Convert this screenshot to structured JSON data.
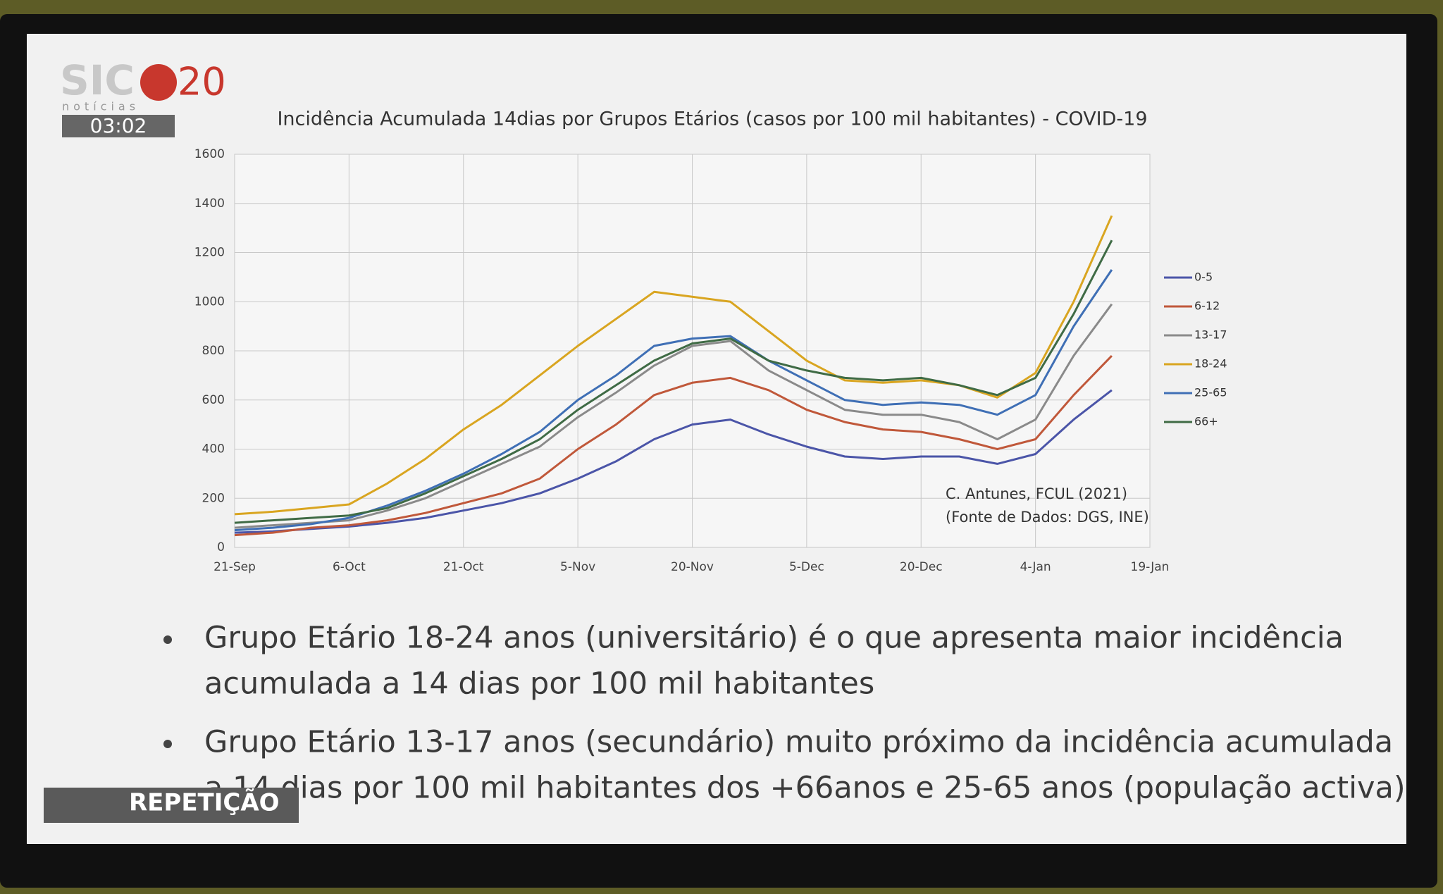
{
  "channel": {
    "logo": "SIC",
    "logo_number": "20",
    "logo_sub": "notícias",
    "clock": "03:02",
    "banner": "REPETIÇÃO"
  },
  "chart_data": {
    "type": "line",
    "title": "Incidência Acumulada 14dias por Grupos Etários (casos por 100 mil habitantes) - COVID-19",
    "categories": [
      "21-Sep",
      null,
      null,
      "6-Oct",
      null,
      null,
      "21-Oct",
      null,
      null,
      "5-Nov",
      null,
      null,
      "20-Nov",
      null,
      null,
      "5-Dec",
      null,
      null,
      "20-Dec",
      null,
      null,
      "4-Jan",
      null,
      null,
      "19-Jan"
    ],
    "series": [
      {
        "name": "0-5",
        "color": "#4b55a8",
        "values": [
          60,
          65,
          75,
          85,
          100,
          120,
          150,
          180,
          220,
          280,
          350,
          440,
          500,
          520,
          460,
          410,
          370,
          360,
          370,
          370,
          340,
          380,
          520,
          640,
          null
        ]
      },
      {
        "name": "6-12",
        "color": "#c0583a",
        "values": [
          50,
          60,
          80,
          90,
          110,
          140,
          180,
          220,
          280,
          400,
          500,
          620,
          670,
          690,
          640,
          560,
          510,
          480,
          470,
          440,
          400,
          440,
          620,
          780,
          null
        ]
      },
      {
        "name": "13-17",
        "color": "#8a8a8a",
        "values": [
          80,
          90,
          100,
          110,
          150,
          200,
          270,
          340,
          410,
          530,
          630,
          740,
          820,
          840,
          720,
          640,
          560,
          540,
          540,
          510,
          440,
          520,
          780,
          990,
          null
        ]
      },
      {
        "name": "18-24",
        "color": "#d9a520",
        "values": [
          135,
          145,
          160,
          175,
          260,
          360,
          480,
          580,
          700,
          820,
          930,
          1040,
          1020,
          1000,
          880,
          760,
          680,
          670,
          680,
          660,
          610,
          710,
          1000,
          1350,
          null
        ]
      },
      {
        "name": "25-65",
        "color": "#3f6fb5",
        "values": [
          70,
          80,
          95,
          120,
          170,
          230,
          300,
          380,
          470,
          600,
          700,
          820,
          850,
          860,
          760,
          680,
          600,
          580,
          590,
          580,
          540,
          620,
          900,
          1130,
          null
        ]
      },
      {
        "name": "66+",
        "color": "#3f6b45",
        "values": [
          100,
          110,
          120,
          130,
          160,
          220,
          290,
          360,
          440,
          560,
          660,
          760,
          830,
          850,
          760,
          720,
          690,
          680,
          690,
          660,
          620,
          690,
          950,
          1250,
          null
        ]
      }
    ],
    "ylim": [
      0,
      1600
    ],
    "yticks": [
      0,
      200,
      400,
      600,
      800,
      1000,
      1200,
      1400,
      1600
    ],
    "grid": true,
    "legend": "right",
    "annotations": [
      "C. Antunes, FCUL (2021)",
      "(Fonte de Dados: DGS, INE)"
    ]
  },
  "bullets": [
    [
      "Grupo Etário 18-24 anos (universitário) é o que apresenta maior incidência",
      "acumulada a 14 dias por 100 mil habitantes"
    ],
    [
      "Grupo Etário 13-17 anos (secundário) muito próximo da incidência acumulada",
      "a 14 dias por 100 mil habitantes dos +66anos e 25-65 anos (população activa)"
    ]
  ]
}
